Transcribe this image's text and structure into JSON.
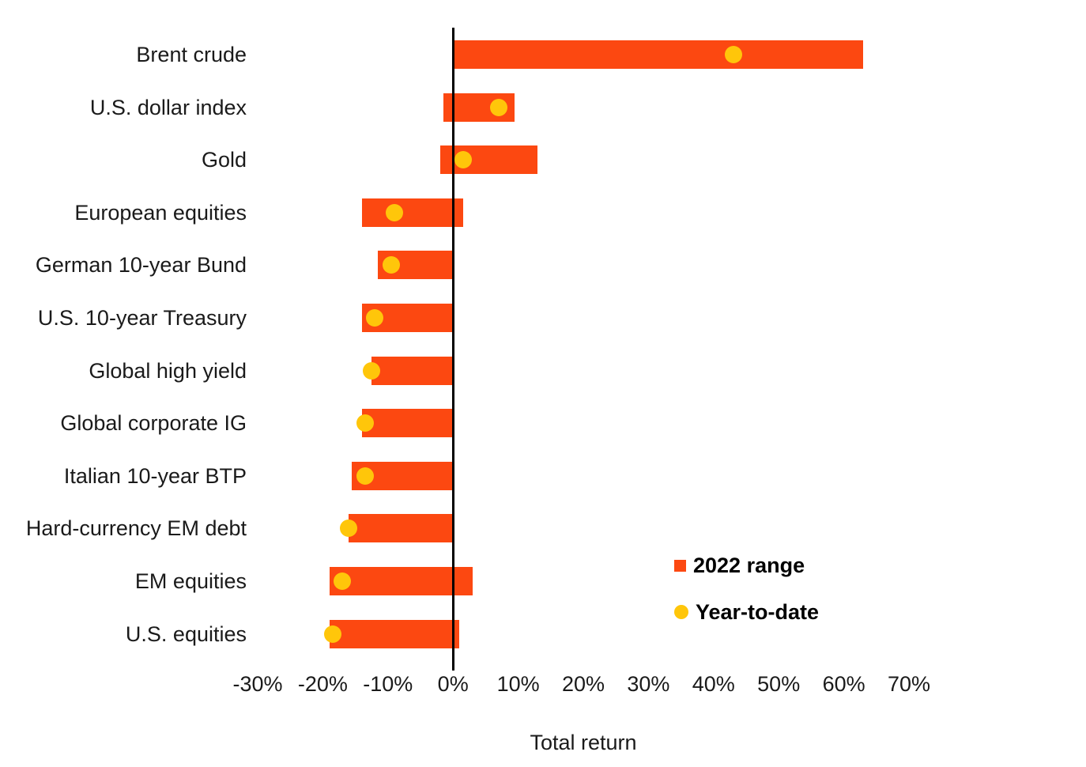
{
  "chart_data": {
    "type": "bar",
    "subtype": "horizontal-range-with-markers",
    "title": "",
    "xlabel": "Total return",
    "ylabel": "",
    "xlim": [
      -30,
      70
    ],
    "x_tick_values": [
      -30,
      -20,
      -10,
      0,
      10,
      20,
      30,
      40,
      50,
      60,
      70
    ],
    "x_ticks": [
      "-30%",
      "-20%",
      "-10%",
      "0%",
      "10%",
      "20%",
      "30%",
      "40%",
      "50%",
      "60%",
      "70%"
    ],
    "grid": false,
    "categories": [
      "Brent crude",
      "U.S. dollar index",
      "Gold",
      "European equities",
      "German 10-year Bund",
      "U.S. 10-year Treasury",
      "Global high yield",
      "Global corporate IG",
      "Italian 10-year BTP",
      "Hard-currency EM debt",
      "EM equities",
      "U.S. equities"
    ],
    "series": [
      {
        "name": "2022 range",
        "type": "range",
        "color": "#FC4811",
        "low": [
          0,
          -1.5,
          -2,
          -14,
          -11.5,
          -14,
          -12.5,
          -14,
          -15.5,
          -16,
          -19,
          -19
        ],
        "high": [
          63,
          9.5,
          13,
          1.5,
          0,
          0,
          0,
          0,
          0,
          0,
          3,
          1
        ]
      },
      {
        "name": "Year-to-date",
        "type": "point",
        "color": "#FFC60A",
        "values": [
          43,
          7,
          1.5,
          -9,
          -9.5,
          -12,
          -12.5,
          -13.5,
          -13.5,
          -16,
          -17,
          -18.5
        ]
      }
    ],
    "legend": {
      "position": "inside-right",
      "entries": [
        {
          "label": "2022 range",
          "marker": "square",
          "color": "#FC4811"
        },
        {
          "label": "Year-to-date",
          "marker": "circle",
          "color": "#FFC60A"
        }
      ]
    },
    "axis_color": "#000000",
    "text_color": "#1a1a1a"
  }
}
